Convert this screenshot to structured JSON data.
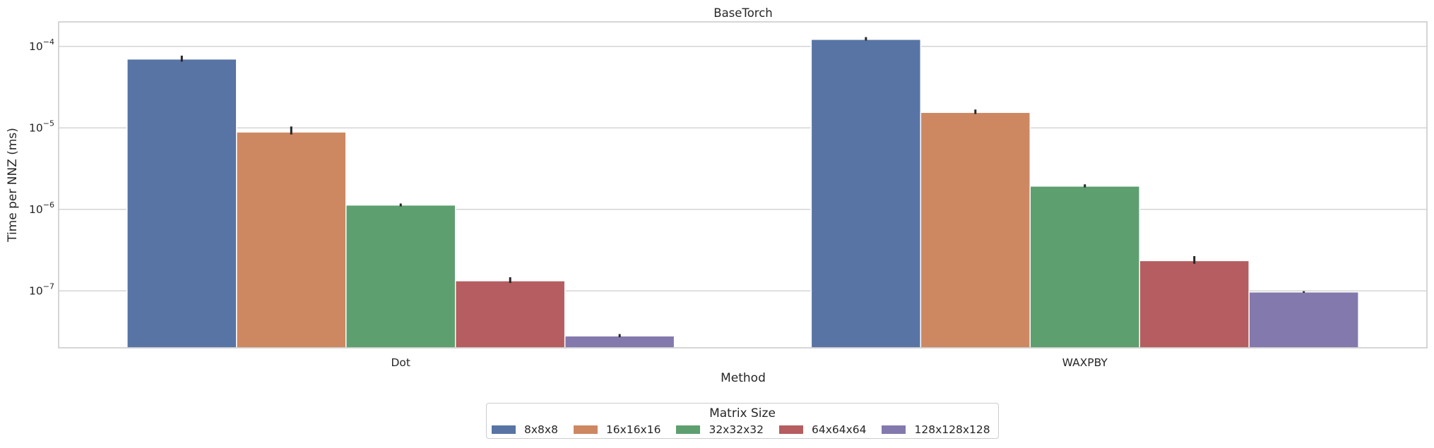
{
  "chart_data": {
    "type": "bar",
    "title": "BaseTorch",
    "xlabel": "Method",
    "ylabel": "Time per NNZ (ms)",
    "yscale": "log",
    "ylim": [
      2e-08,
      0.0002
    ],
    "yticks": [
      {
        "value": 1e-07,
        "base": "10",
        "exp": "−7"
      },
      {
        "value": 1e-06,
        "base": "10",
        "exp": "−6"
      },
      {
        "value": 1e-05,
        "base": "10",
        "exp": "−5"
      },
      {
        "value": 0.0001,
        "base": "10",
        "exp": "−4"
      }
    ],
    "categories": [
      "Dot",
      "WAXPBY"
    ],
    "series": [
      {
        "name": "8x8x8",
        "color": "#5874a5",
        "values": [
          7e-05,
          0.000122
        ],
        "err_low": [
          6.5e-05,
          0.000118
        ],
        "err_high": [
          7.7e-05,
          0.00013
        ]
      },
      {
        "name": "16x16x16",
        "color": "#cd8862",
        "values": [
          8.9e-06,
          1.55e-05
        ],
        "err_low": [
          8.3e-06,
          1.48e-05
        ],
        "err_high": [
          1.04e-05,
          1.68e-05
        ]
      },
      {
        "name": "32x32x32",
        "color": "#5e9f6f",
        "values": [
          1.13e-06,
          1.93e-06
        ],
        "err_low": [
          1.09e-06,
          1.86e-06
        ],
        "err_high": [
          1.18e-06,
          2.03e-06
        ]
      },
      {
        "name": "64x64x64",
        "color": "#b55d60",
        "values": [
          1.33e-07,
          2.35e-07
        ],
        "err_low": [
          1.25e-07,
          2.15e-07
        ],
        "err_high": [
          1.47e-07,
          2.67e-07
        ]
      },
      {
        "name": "128x128x128",
        "color": "#8479ad",
        "values": [
          2.8e-08,
          9.7e-08
        ],
        "err_low": [
          2.7e-08,
          9.5e-08
        ],
        "err_high": [
          2.95e-08,
          9.9e-08
        ]
      }
    ],
    "grid": true,
    "legend": {
      "title": "Matrix Size",
      "placement": "bottom-center"
    }
  }
}
